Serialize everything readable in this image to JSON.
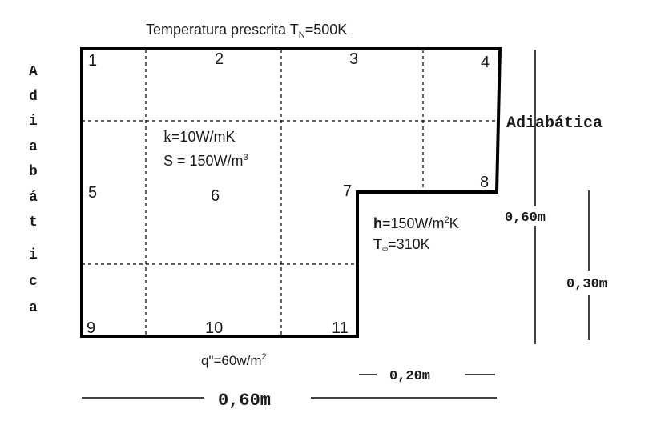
{
  "title": {
    "prefix": "Temperatura prescrita T",
    "sub": "N",
    "suffix": "=500K"
  },
  "left_label": [
    "A",
    "d",
    "i",
    "a",
    "b",
    "á",
    "t",
    "i",
    "c",
    "a"
  ],
  "right_label": "Adiabática",
  "nodes": [
    "1",
    "2",
    "3",
    "4",
    "5",
    "6",
    "7",
    "8",
    "9",
    "10",
    "11"
  ],
  "conductivity": {
    "symbol": "k",
    "value": "=10W/mK"
  },
  "source": {
    "text": "S = 150W/m",
    "exp": "3"
  },
  "convection": {
    "h_symbol": "h",
    "h_value": "=150W/m",
    "h_exp": "2",
    "h_unit": "K",
    "t_symbol": "T",
    "t_sub": "∞",
    "t_value": "=310K"
  },
  "flux": {
    "text": "q\"=60w/m",
    "exp": "2"
  },
  "dimensions": {
    "height_total": "0,60m",
    "height_partial": "0,30m",
    "width_partial": "0,20m",
    "width_total": "0,60m"
  },
  "colors": {
    "line": "#000000",
    "text": "#1a1a1a",
    "background": "#ffffff"
  }
}
